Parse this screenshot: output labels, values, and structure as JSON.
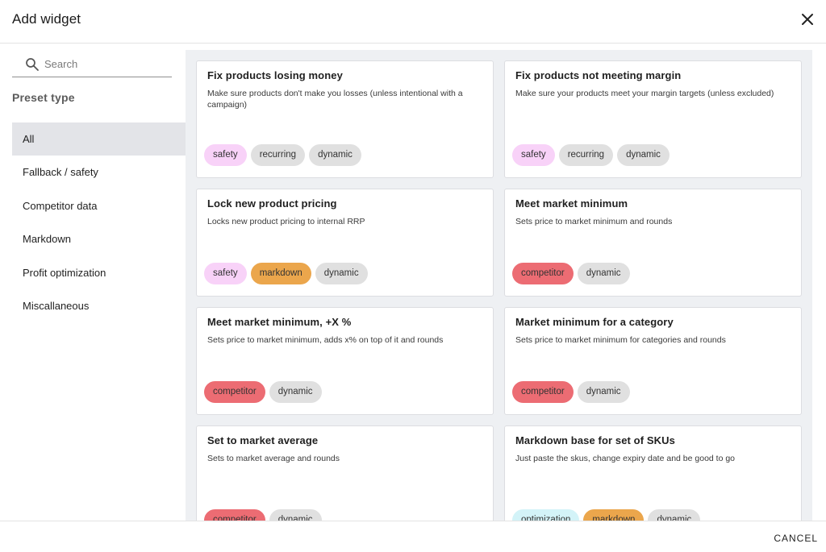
{
  "dialog": {
    "title": "Add widget",
    "close_icon": "close-icon"
  },
  "search": {
    "placeholder": "Search",
    "value": ""
  },
  "sidebar": {
    "heading": "Preset type",
    "items": [
      {
        "label": "All",
        "active": true
      },
      {
        "label": "Fallback / safety",
        "active": false
      },
      {
        "label": "Competitor data",
        "active": false
      },
      {
        "label": "Markdown",
        "active": false
      },
      {
        "label": "Profit optimization",
        "active": false
      },
      {
        "label": "Miscallaneous",
        "active": false
      }
    ]
  },
  "cards": [
    {
      "title": "Fix products losing money",
      "description": "Make sure products don't make you losses (unless intentional with a campaign)",
      "tags": [
        "safety",
        "recurring",
        "dynamic"
      ]
    },
    {
      "title": "Fix products not meeting margin",
      "description": "Make sure your products meet your margin targets (unless excluded)",
      "tags": [
        "safety",
        "recurring",
        "dynamic"
      ]
    },
    {
      "title": "Lock new product pricing",
      "description": "Locks new product pricing to internal RRP",
      "tags": [
        "safety",
        "markdown",
        "dynamic"
      ]
    },
    {
      "title": "Meet market minimum",
      "description": "Sets price to market minimum and rounds",
      "tags": [
        "competitor",
        "dynamic"
      ]
    },
    {
      "title": "Meet market minimum, +X %",
      "description": "Sets price to market minimum, adds x% on top of it and rounds",
      "tags": [
        "competitor",
        "dynamic"
      ]
    },
    {
      "title": "Market minimum for a category",
      "description": "Sets price to market minimum for categories and rounds",
      "tags": [
        "competitor",
        "dynamic"
      ]
    },
    {
      "title": "Set to market average",
      "description": "Sets to market average and rounds",
      "tags": [
        "competitor",
        "dynamic"
      ]
    },
    {
      "title": "Markdown base for set of SKUs",
      "description": "Just paste the skus, change expiry date and be good to go",
      "tags": [
        "optimization",
        "markdown",
        "dynamic"
      ]
    }
  ],
  "tag_colors": {
    "safety": "#f8d2f8",
    "recurring": "#e0e0e0",
    "dynamic": "#e0e0e0",
    "markdown": "#eba64c",
    "competitor": "#ec6c73",
    "optimization": "#d3f3f8"
  },
  "footer": {
    "cancel_label": "CANCEL"
  }
}
